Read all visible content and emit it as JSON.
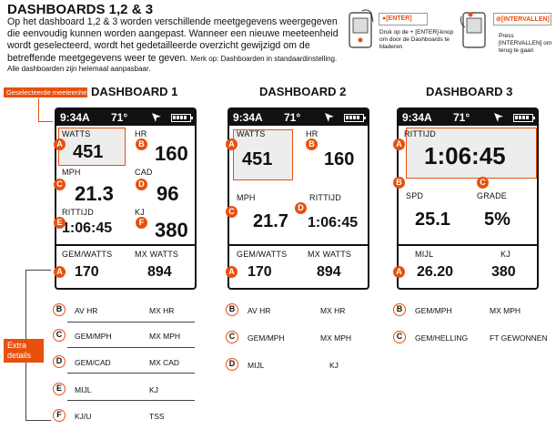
{
  "header": {
    "title": "DASHBOARDS 1,2 & 3",
    "intro": "Op het dashboard 1,2 & 3 worden verschillende meetgegevens weergegeven die eenvoudig kunnen worden aangepast. Wanneer een nieuwe meeteenheid wordt geselecteerd, wordt het gedetailleerde overzicht gewijzigd om de betreffende meetgegevens weer te geven.",
    "intro_small": "Merk op: Dashboarden in standaardinstelling.",
    "note": "Alle dashboarden zijn helemaal aanpasbaar."
  },
  "hints": {
    "enter_label": "●[ENTER]",
    "enter_text": "Druk op de + [ENTER]-knop om door de Dashboards te bladeren",
    "interval_label": "⊘[INTERVALLEN]",
    "interval_text": "Press [INTERVALLEN] om terug te gaan"
  },
  "tags": {
    "selected": "Geselecteerde meeteenheid",
    "extra_line1": "Extra",
    "extra_line2": "details"
  },
  "status": {
    "time": "9:34A",
    "temp": "71°"
  },
  "dashboards": [
    {
      "title": "DASHBOARD 1",
      "fields": {
        "f1_label": "WATTS",
        "f1_value": "451",
        "f2_label": "HR",
        "f2_value": "160",
        "f3_label": "MPH",
        "f3_value": "21.3",
        "f4_label": "CAD",
        "f4_value": "96",
        "f5_label": "RITTIJD",
        "f5_value": "1:06:45",
        "f6_label": "KJ",
        "f6_value": "380"
      },
      "bottom": {
        "l1": "GEM/WATTS",
        "l2": "MX WATTS",
        "v1": "170",
        "v2": "894"
      },
      "badges": [
        "A",
        "B",
        "C",
        "D",
        "E",
        "F"
      ],
      "extras": [
        {
          "badge": "B",
          "left": "AV HR",
          "right": "MX HR"
        },
        {
          "badge": "C",
          "left": "GEM/MPH",
          "right": "MX MPH"
        },
        {
          "badge": "D",
          "left": "GEM/CAD",
          "right": "MX CAD"
        },
        {
          "badge": "E",
          "left": "MIJL",
          "right": "KJ"
        },
        {
          "badge": "F",
          "left": "KJ/U",
          "right": "TSS"
        }
      ]
    },
    {
      "title": "DASHBOARD 2",
      "fields": {
        "f1_label": "WATTS",
        "f1_value": "451",
        "f2_label": "HR",
        "f2_value": "160",
        "f3_label": "MPH",
        "f3_value": "21.7",
        "f4_label": "RITTIJD",
        "f4_value": "1:06:45"
      },
      "bottom": {
        "l1": "GEM/WATTS",
        "l2": "MX WATTS",
        "v1": "170",
        "v2": "894"
      },
      "badges": [
        "A",
        "B",
        "C",
        "D"
      ],
      "extras": [
        {
          "badge": "B",
          "left": "AV HR",
          "right": "MX HR"
        },
        {
          "badge": "C",
          "left": "GEM/MPH",
          "right": "MX MPH"
        },
        {
          "badge": "D",
          "left": "MIJL",
          "right": "KJ"
        }
      ]
    },
    {
      "title": "DASHBOARD 3",
      "fields": {
        "f1_label": "RITTIJD",
        "f1_value": "1:06:45",
        "f2_label": "SPD",
        "f2_value": "25.1",
        "f3_label": "GRADE",
        "f3_value": "5%"
      },
      "bottom": {
        "l1": "MIJL",
        "l2": "KJ",
        "v1": "26.20",
        "v2": "380"
      },
      "badges": [
        "A",
        "B",
        "C"
      ],
      "extras": [
        {
          "badge": "B",
          "left": "GEM/MPH",
          "right": "MX MPH"
        },
        {
          "badge": "C",
          "left": "GEM/HELLING",
          "right": "FT GEWONNEN"
        }
      ]
    }
  ],
  "colors": {
    "accent": "#e8500e",
    "screen_bar": "#111111"
  }
}
